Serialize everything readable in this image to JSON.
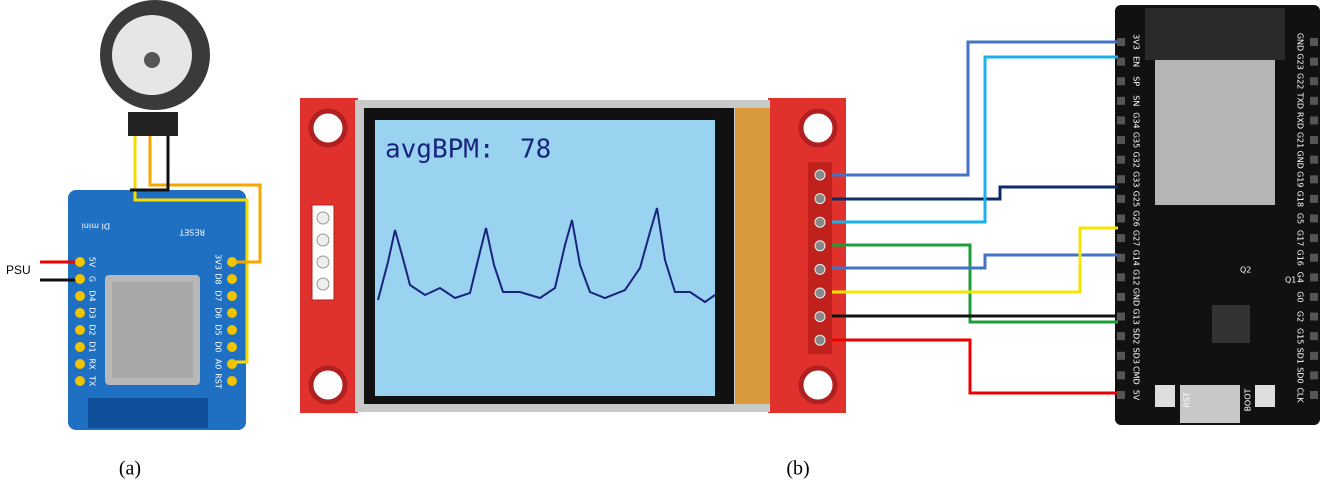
{
  "panel_a": {
    "label": "(a)",
    "psu": "PSU",
    "board_name": "DI mini",
    "board_reset": "RESET",
    "left_pins": [
      "5V",
      "G",
      "D4",
      "D3",
      "D2",
      "D1",
      "RX",
      "TX"
    ],
    "right_pins": [
      "3V3",
      "D8",
      "D7",
      "D6",
      "D5",
      "D0",
      "A0",
      "RST"
    ]
  },
  "panel_b": {
    "label": "(b)",
    "display": {
      "caption": "avgBPM:",
      "value": 78
    },
    "esp32": {
      "left_pins": [
        "3V3",
        "EN",
        "SP",
        "SN",
        "G34",
        "G35",
        "G32",
        "G33",
        "G25",
        "G26",
        "G27",
        "G14",
        "G12",
        "GND",
        "G13",
        "SD2",
        "SD3",
        "CMD",
        "5V"
      ],
      "right_pins": [
        "GND",
        "G23",
        "G22",
        "TXD",
        "RXD",
        "G21",
        "GND",
        "G19",
        "G18",
        "G5",
        "G17",
        "G16",
        "G4",
        "G0",
        "G2",
        "G15",
        "SD1",
        "SD0",
        "CLK"
      ],
      "buttons": [
        "RST",
        "BOOT"
      ],
      "transistors": [
        "Q2",
        "Q1"
      ]
    }
  }
}
